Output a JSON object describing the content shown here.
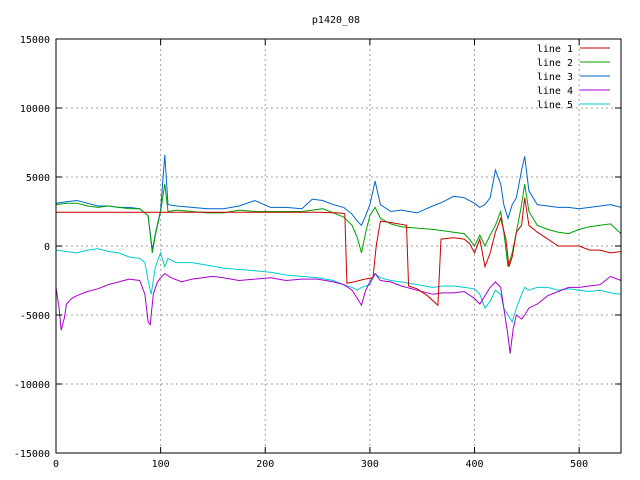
{
  "chart_data": {
    "type": "line",
    "title": "p1420_08",
    "xlabel": "",
    "ylabel": "",
    "xlim": [
      0,
      540
    ],
    "ylim": [
      -15000,
      15000
    ],
    "x_ticks": [
      0,
      100,
      200,
      300,
      400,
      500
    ],
    "y_ticks": [
      -15000,
      -10000,
      -5000,
      0,
      5000,
      10000,
      15000
    ],
    "grid": true,
    "legend_position": "top-right",
    "series": [
      {
        "name": "line 1",
        "color": "#cc0000",
        "points": [
          [
            0,
            2450
          ],
          [
            80,
            2450
          ],
          [
            90,
            2450
          ],
          [
            100,
            2450
          ],
          [
            150,
            2450
          ],
          [
            200,
            2450
          ],
          [
            250,
            2450
          ],
          [
            270,
            2400
          ],
          [
            276,
            2350
          ],
          [
            278,
            -2700
          ],
          [
            285,
            -2600
          ],
          [
            295,
            -2400
          ],
          [
            303,
            -2300
          ],
          [
            306,
            0
          ],
          [
            310,
            1800
          ],
          [
            320,
            1700
          ],
          [
            335,
            1500
          ],
          [
            337,
            -2900
          ],
          [
            345,
            -3100
          ],
          [
            355,
            -3600
          ],
          [
            365,
            -4300
          ],
          [
            368,
            500
          ],
          [
            380,
            600
          ],
          [
            390,
            500
          ],
          [
            395,
            200
          ],
          [
            400,
            -500
          ],
          [
            405,
            500
          ],
          [
            410,
            -1500
          ],
          [
            415,
            -500
          ],
          [
            420,
            1000
          ],
          [
            425,
            2000
          ],
          [
            430,
            500
          ],
          [
            433,
            -1500
          ],
          [
            436,
            -800
          ],
          [
            440,
            1000
          ],
          [
            445,
            1500
          ],
          [
            448,
            3500
          ],
          [
            452,
            1500
          ],
          [
            460,
            1000
          ],
          [
            470,
            500
          ],
          [
            480,
            0
          ],
          [
            500,
            0
          ],
          [
            510,
            -300
          ],
          [
            520,
            -300
          ],
          [
            530,
            -500
          ],
          [
            540,
            -400
          ]
        ]
      },
      {
        "name": "line 2",
        "color": "#00a000",
        "points": [
          [
            0,
            3000
          ],
          [
            10,
            3100
          ],
          [
            20,
            3100
          ],
          [
            30,
            2900
          ],
          [
            40,
            2800
          ],
          [
            50,
            2900
          ],
          [
            60,
            2800
          ],
          [
            70,
            2700
          ],
          [
            80,
            2700
          ],
          [
            88,
            2200
          ],
          [
            92,
            -500
          ],
          [
            95,
            800
          ],
          [
            100,
            2500
          ],
          [
            104,
            4500
          ],
          [
            107,
            2500
          ],
          [
            115,
            2600
          ],
          [
            130,
            2500
          ],
          [
            145,
            2400
          ],
          [
            160,
            2400
          ],
          [
            175,
            2600
          ],
          [
            190,
            2500
          ],
          [
            205,
            2500
          ],
          [
            220,
            2500
          ],
          [
            235,
            2500
          ],
          [
            245,
            2600
          ],
          [
            255,
            2700
          ],
          [
            265,
            2400
          ],
          [
            275,
            2100
          ],
          [
            283,
            1500
          ],
          [
            288,
            600
          ],
          [
            292,
            -500
          ],
          [
            296,
            1000
          ],
          [
            300,
            2200
          ],
          [
            305,
            2800
          ],
          [
            310,
            2000
          ],
          [
            320,
            1600
          ],
          [
            330,
            1400
          ],
          [
            345,
            1300
          ],
          [
            360,
            1200
          ],
          [
            370,
            1100
          ],
          [
            380,
            1000
          ],
          [
            390,
            900
          ],
          [
            395,
            500
          ],
          [
            400,
            0
          ],
          [
            405,
            800
          ],
          [
            410,
            0
          ],
          [
            415,
            800
          ],
          [
            420,
            1500
          ],
          [
            425,
            2500
          ],
          [
            428,
            1000
          ],
          [
            432,
            -1500
          ],
          [
            436,
            -500
          ],
          [
            440,
            1000
          ],
          [
            445,
            3000
          ],
          [
            448,
            4500
          ],
          [
            452,
            2500
          ],
          [
            460,
            1500
          ],
          [
            470,
            1200
          ],
          [
            480,
            1000
          ],
          [
            490,
            900
          ],
          [
            500,
            1200
          ],
          [
            510,
            1400
          ],
          [
            520,
            1500
          ],
          [
            530,
            1600
          ],
          [
            540,
            900
          ]
        ]
      },
      {
        "name": "line 3",
        "color": "#0066cc",
        "points": [
          [
            0,
            3100
          ],
          [
            10,
            3200
          ],
          [
            20,
            3300
          ],
          [
            30,
            3100
          ],
          [
            40,
            2900
          ],
          [
            50,
            2900
          ],
          [
            60,
            2800
          ],
          [
            70,
            2800
          ],
          [
            80,
            2700
          ],
          [
            88,
            2200
          ],
          [
            92,
            -300
          ],
          [
            95,
            900
          ],
          [
            100,
            2600
          ],
          [
            104,
            6600
          ],
          [
            107,
            3000
          ],
          [
            115,
            2900
          ],
          [
            130,
            2800
          ],
          [
            145,
            2700
          ],
          [
            160,
            2700
          ],
          [
            175,
            2900
          ],
          [
            190,
            3300
          ],
          [
            205,
            2800
          ],
          [
            220,
            2800
          ],
          [
            235,
            2700
          ],
          [
            245,
            3400
          ],
          [
            255,
            3300
          ],
          [
            265,
            3000
          ],
          [
            275,
            2800
          ],
          [
            283,
            2300
          ],
          [
            288,
            1800
          ],
          [
            292,
            1500
          ],
          [
            296,
            2200
          ],
          [
            300,
            3000
          ],
          [
            305,
            4700
          ],
          [
            310,
            3000
          ],
          [
            320,
            2500
          ],
          [
            330,
            2600
          ],
          [
            345,
            2400
          ],
          [
            360,
            2900
          ],
          [
            370,
            3200
          ],
          [
            380,
            3600
          ],
          [
            390,
            3500
          ],
          [
            400,
            3100
          ],
          [
            405,
            2800
          ],
          [
            410,
            3000
          ],
          [
            415,
            3500
          ],
          [
            420,
            5500
          ],
          [
            425,
            4500
          ],
          [
            428,
            3000
          ],
          [
            432,
            2000
          ],
          [
            436,
            3000
          ],
          [
            440,
            3500
          ],
          [
            445,
            5500
          ],
          [
            448,
            6500
          ],
          [
            452,
            4000
          ],
          [
            460,
            3000
          ],
          [
            470,
            2900
          ],
          [
            480,
            2800
          ],
          [
            490,
            2800
          ],
          [
            500,
            2700
          ],
          [
            510,
            2800
          ],
          [
            520,
            2900
          ],
          [
            530,
            3000
          ],
          [
            540,
            2800
          ]
        ]
      },
      {
        "name": "line 4",
        "color": "#aa00cc",
        "points": [
          [
            0,
            -3000
          ],
          [
            3,
            -4500
          ],
          [
            5,
            -6100
          ],
          [
            8,
            -5200
          ],
          [
            10,
            -4200
          ],
          [
            15,
            -3800
          ],
          [
            20,
            -3600
          ],
          [
            30,
            -3300
          ],
          [
            40,
            -3100
          ],
          [
            50,
            -2800
          ],
          [
            60,
            -2600
          ],
          [
            70,
            -2400
          ],
          [
            80,
            -2500
          ],
          [
            85,
            -3500
          ],
          [
            88,
            -5500
          ],
          [
            90,
            -5700
          ],
          [
            93,
            -3500
          ],
          [
            97,
            -2600
          ],
          [
            100,
            -2300
          ],
          [
            104,
            -2000
          ],
          [
            110,
            -2300
          ],
          [
            120,
            -2600
          ],
          [
            130,
            -2400
          ],
          [
            140,
            -2300
          ],
          [
            150,
            -2200
          ],
          [
            160,
            -2300
          ],
          [
            175,
            -2500
          ],
          [
            190,
            -2400
          ],
          [
            205,
            -2300
          ],
          [
            220,
            -2500
          ],
          [
            235,
            -2400
          ],
          [
            250,
            -2400
          ],
          [
            265,
            -2600
          ],
          [
            275,
            -2800
          ],
          [
            283,
            -3200
          ],
          [
            288,
            -3800
          ],
          [
            292,
            -4300
          ],
          [
            296,
            -3200
          ],
          [
            300,
            -2600
          ],
          [
            305,
            -2000
          ],
          [
            310,
            -2500
          ],
          [
            320,
            -2600
          ],
          [
            330,
            -2900
          ],
          [
            345,
            -3200
          ],
          [
            360,
            -3500
          ],
          [
            370,
            -3400
          ],
          [
            380,
            -3400
          ],
          [
            390,
            -3300
          ],
          [
            400,
            -3800
          ],
          [
            405,
            -4200
          ],
          [
            410,
            -3600
          ],
          [
            415,
            -3000
          ],
          [
            420,
            -2600
          ],
          [
            425,
            -3000
          ],
          [
            428,
            -4500
          ],
          [
            432,
            -6500
          ],
          [
            434,
            -7800
          ],
          [
            437,
            -6000
          ],
          [
            440,
            -5000
          ],
          [
            445,
            -5300
          ],
          [
            448,
            -5000
          ],
          [
            452,
            -4500
          ],
          [
            460,
            -4200
          ],
          [
            470,
            -3600
          ],
          [
            480,
            -3300
          ],
          [
            490,
            -3000
          ],
          [
            500,
            -3000
          ],
          [
            510,
            -2900
          ],
          [
            520,
            -2800
          ],
          [
            530,
            -2200
          ],
          [
            540,
            -2500
          ]
        ]
      },
      {
        "name": "line 5",
        "color": "#00cccc",
        "points": [
          [
            0,
            -300
          ],
          [
            10,
            -400
          ],
          [
            20,
            -500
          ],
          [
            30,
            -300
          ],
          [
            40,
            -200
          ],
          [
            50,
            -400
          ],
          [
            60,
            -500
          ],
          [
            70,
            -800
          ],
          [
            80,
            -900
          ],
          [
            85,
            -1200
          ],
          [
            88,
            -2500
          ],
          [
            91,
            -3500
          ],
          [
            95,
            -1500
          ],
          [
            100,
            -500
          ],
          [
            104,
            -1500
          ],
          [
            107,
            -900
          ],
          [
            115,
            -1200
          ],
          [
            130,
            -1200
          ],
          [
            145,
            -1400
          ],
          [
            160,
            -1600
          ],
          [
            175,
            -1700
          ],
          [
            190,
            -1800
          ],
          [
            205,
            -1900
          ],
          [
            220,
            -2100
          ],
          [
            235,
            -2200
          ],
          [
            250,
            -2300
          ],
          [
            265,
            -2500
          ],
          [
            275,
            -2800
          ],
          [
            283,
            -3000
          ],
          [
            288,
            -3200
          ],
          [
            292,
            -3000
          ],
          [
            296,
            -2900
          ],
          [
            300,
            -2800
          ],
          [
            305,
            -2000
          ],
          [
            310,
            -2300
          ],
          [
            320,
            -2500
          ],
          [
            330,
            -2600
          ],
          [
            345,
            -2800
          ],
          [
            360,
            -3000
          ],
          [
            370,
            -2900
          ],
          [
            380,
            -2900
          ],
          [
            390,
            -3000
          ],
          [
            400,
            -3100
          ],
          [
            405,
            -3500
          ],
          [
            410,
            -4500
          ],
          [
            415,
            -4000
          ],
          [
            420,
            -3200
          ],
          [
            425,
            -3500
          ],
          [
            428,
            -4500
          ],
          [
            432,
            -5000
          ],
          [
            436,
            -5500
          ],
          [
            440,
            -4500
          ],
          [
            445,
            -3500
          ],
          [
            448,
            -3000
          ],
          [
            452,
            -3200
          ],
          [
            460,
            -3000
          ],
          [
            470,
            -3000
          ],
          [
            480,
            -3200
          ],
          [
            490,
            -3100
          ],
          [
            500,
            -3200
          ],
          [
            510,
            -3300
          ],
          [
            520,
            -3200
          ],
          [
            530,
            -3400
          ],
          [
            540,
            -3500
          ]
        ]
      }
    ]
  }
}
